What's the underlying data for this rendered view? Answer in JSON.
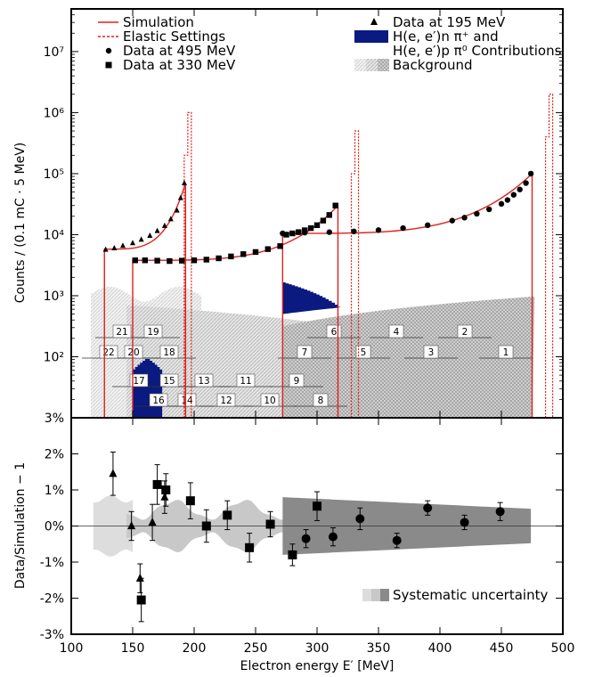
{
  "chart_data": [
    {
      "type": "line",
      "ylabel": "Counts / (0.1 mC · 5 MeV)",
      "yscale": "log",
      "ylim": [
        10,
        50000000
      ],
      "xlim": [
        100,
        500
      ],
      "y_tick_labels": [
        "10⁷",
        "10⁶",
        "10⁵",
        "10⁴",
        "10³",
        "10²"
      ],
      "y_tick_values": [
        10000000,
        1000000,
        100000,
        10000,
        1000,
        100
      ],
      "legend": {
        "left": [
          {
            "label": "Simulation",
            "style": "solid-red-line"
          },
          {
            "label": "Elastic Settings",
            "style": "dashed-red-line"
          },
          {
            "label": "Data at 495 MeV",
            "style": "circle-marker"
          },
          {
            "label": "Data at 330 MeV",
            "style": "square-marker"
          }
        ],
        "right": [
          {
            "label": "Data at 195 MeV",
            "style": "triangle-marker"
          },
          {
            "label": "H(e, e′)n π⁺ and",
            "style": "navy-box"
          },
          {
            "label": "H(e, e′)p π⁰ Contributions",
            "style": "none"
          },
          {
            "label": "Background",
            "style": "gray-boxes"
          }
        ]
      },
      "series": [
        {
          "name": "Data at 195 MeV",
          "marker": "triangle",
          "x": [
            128,
            135,
            142,
            150,
            157,
            164,
            170,
            176,
            181,
            186,
            189,
            192
          ],
          "y": [
            5700,
            6000,
            6600,
            7300,
            8300,
            9600,
            11500,
            14000,
            18000,
            25000,
            40000,
            70000
          ]
        },
        {
          "name": "Data at 330 MeV",
          "marker": "square",
          "x": [
            152,
            160,
            170,
            180,
            190,
            200,
            210,
            220,
            230,
            240,
            250,
            260,
            270,
            275,
            280,
            285,
            290,
            295,
            300,
            305,
            310,
            315
          ],
          "y": [
            3800,
            3800,
            3750,
            3700,
            3750,
            3800,
            3900,
            4100,
            4400,
            4800,
            5200,
            5800,
            6500,
            10000,
            10500,
            11000,
            11800,
            12800,
            14300,
            17000,
            21000,
            30000
          ]
        },
        {
          "name": "Data at 495 MeV",
          "marker": "circle",
          "x": [
            272,
            290,
            310,
            330,
            350,
            370,
            390,
            410,
            420,
            430,
            440,
            450,
            455,
            460,
            465,
            470,
            474
          ],
          "y": [
            10500,
            10800,
            11000,
            11300,
            11900,
            12800,
            14300,
            17000,
            19000,
            22000,
            26000,
            32000,
            37000,
            45000,
            55000,
            70000,
            100000
          ]
        }
      ],
      "simulation_steps": [
        {
          "x0": 127,
          "x1": 193,
          "y0": 5800,
          "y1": 70000
        },
        {
          "x0": 150,
          "x1": 317,
          "y0": 3800,
          "y1": 30000
        },
        {
          "x0": 272,
          "x1": 475,
          "y0": 10500,
          "y1": 100000
        }
      ],
      "elastic_peaks": [
        {
          "x": 197,
          "y": 1000000
        },
        {
          "x": 333,
          "y": 500000
        },
        {
          "x": 491,
          "y": 2000000
        }
      ],
      "region_labels": [
        "1",
        "2",
        "3",
        "4",
        "5",
        "6",
        "7",
        "8",
        "9",
        "10",
        "11",
        "12",
        "13",
        "14",
        "15",
        "16",
        "17",
        "18",
        "19",
        "20",
        "21",
        "22"
      ]
    },
    {
      "type": "scatter",
      "ylabel": "Data/Simulation − 1",
      "xlabel": "Electron energy  E′  [MeV]",
      "xlim": [
        100,
        500
      ],
      "ylim": [
        -3,
        3
      ],
      "x_tick_labels": [
        "100",
        "150",
        "200",
        "250",
        "300",
        "350",
        "400",
        "450",
        "500"
      ],
      "x_tick_values": [
        100,
        150,
        200,
        250,
        300,
        350,
        400,
        450,
        500
      ],
      "y_tick_labels": [
        "3%",
        "2%",
        "1%",
        "0%",
        "-1%",
        "-2%",
        "-3%"
      ],
      "y_tick_values": [
        3,
        2,
        1,
        0,
        -1,
        -2,
        -3
      ],
      "legend": [
        {
          "label": "Systematic uncertainty",
          "style": "gray-boxes"
        }
      ],
      "series": [
        {
          "name": "Data at 195 MeV",
          "marker": "triangle",
          "x": [
            134,
            149,
            156,
            166,
            176
          ],
          "y": [
            1.45,
            0.0,
            -1.45,
            0.1,
            0.8
          ],
          "err": [
            0.6,
            0.4,
            0.4,
            0.5,
            0.45
          ]
        },
        {
          "name": "Data at 330 MeV",
          "marker": "square",
          "x": [
            157,
            170,
            177,
            197,
            210,
            227,
            245,
            262,
            280,
            300
          ],
          "y": [
            -2.05,
            1.15,
            1.0,
            0.7,
            0.0,
            0.3,
            -0.6,
            0.05,
            -0.8,
            0.55
          ],
          "err": [
            0.6,
            0.55,
            0.45,
            0.5,
            0.45,
            0.4,
            0.4,
            0.35,
            0.3,
            0.4
          ]
        },
        {
          "name": "Data at 495 MeV",
          "marker": "circle",
          "x": [
            291,
            313,
            335,
            365,
            390,
            420,
            449
          ],
          "y": [
            -0.35,
            -0.3,
            0.2,
            -0.4,
            0.5,
            0.1,
            0.4
          ],
          "err": [
            0.25,
            0.25,
            0.3,
            0.2,
            0.2,
            0.2,
            0.25
          ]
        }
      ]
    }
  ]
}
